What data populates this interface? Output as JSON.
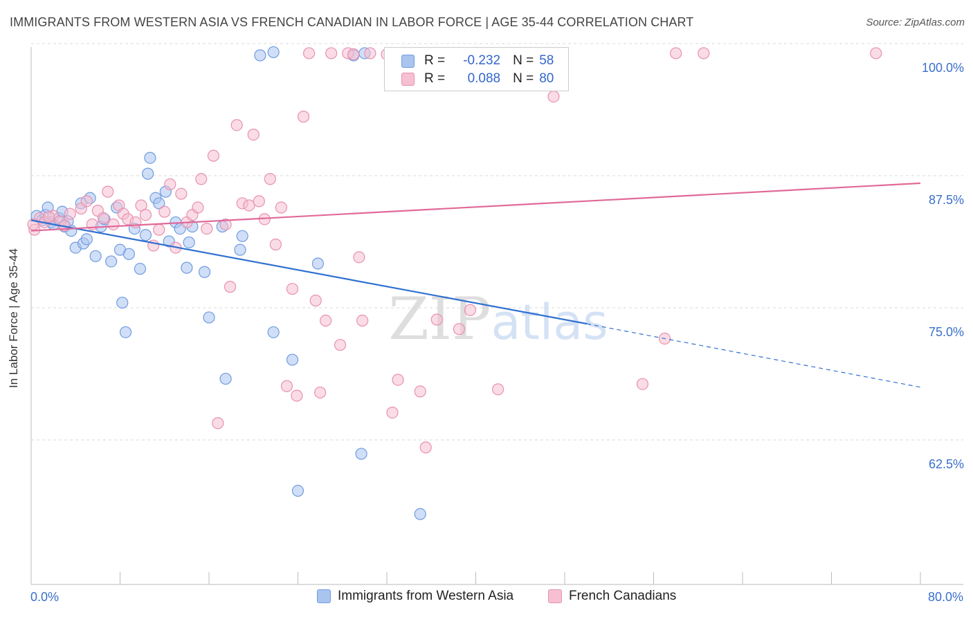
{
  "title": "IMMIGRANTS FROM WESTERN ASIA VS FRENCH CANADIAN IN LABOR FORCE | AGE 35-44 CORRELATION CHART",
  "source": "Source: ZipAtlas.com",
  "watermark": "ZIPatlas",
  "legend": {
    "r_label": "R =",
    "n_label": "N =",
    "rows": [
      {
        "r": "-0.232",
        "n": "58",
        "color": "#aac4f0",
        "border": "#6f9be0"
      },
      {
        "r": "0.088",
        "n": "80",
        "color": "#f6c0d2",
        "border": "#e890b0"
      }
    ]
  },
  "bottom_legend": [
    {
      "label": "Immigrants from Western Asia"
    },
    {
      "label": "French Canadians"
    }
  ],
  "chart_data": {
    "type": "scatter",
    "ylabel": "In Labor Force | Age 35-44",
    "xlim": [
      0,
      80
    ],
    "ylim": [
      50,
      101
    ],
    "x_tick_labels": [
      {
        "value": 0,
        "label": "0.0%"
      },
      {
        "value": 80,
        "label": "80.0%"
      }
    ],
    "y_tick_labels": [
      {
        "value": 100,
        "label": "100.0%"
      },
      {
        "value": 87.5,
        "label": "87.5%"
      },
      {
        "value": 75,
        "label": "75.0%"
      },
      {
        "value": 62.5,
        "label": "62.5%"
      }
    ],
    "grid": "horizontal-dashed",
    "series": [
      {
        "name": "Immigrants from Western Asia",
        "color": "#6f9be0",
        "fill": "#aac4f0",
        "line_color": "#2f6fd0",
        "trend": {
          "x": [
            0,
            50,
            80
          ],
          "y": [
            84.4,
            74.6,
            68.6
          ],
          "solid_until": 50
        },
        "points": [
          [
            0.5,
            84.8
          ],
          [
            1.0,
            84.4
          ],
          [
            1.3,
            84.9
          ],
          [
            1.5,
            85.6
          ],
          [
            1.8,
            84.2
          ],
          [
            2.0,
            84.0
          ],
          [
            2.5,
            84.6
          ],
          [
            2.8,
            85.2
          ],
          [
            3.0,
            83.8
          ],
          [
            3.3,
            84.3
          ],
          [
            3.6,
            83.4
          ],
          [
            4.0,
            81.8
          ],
          [
            4.5,
            86.0
          ],
          [
            4.7,
            82.2
          ],
          [
            5.0,
            82.6
          ],
          [
            5.3,
            86.5
          ],
          [
            5.8,
            81.0
          ],
          [
            6.3,
            83.8
          ],
          [
            6.6,
            84.5
          ],
          [
            7.2,
            80.5
          ],
          [
            7.7,
            85.6
          ],
          [
            8.0,
            81.6
          ],
          [
            8.2,
            76.6
          ],
          [
            8.5,
            73.8
          ],
          [
            8.8,
            81.2
          ],
          [
            9.3,
            83.6
          ],
          [
            9.8,
            79.8
          ],
          [
            10.3,
            83.0
          ],
          [
            10.5,
            88.8
          ],
          [
            10.7,
            90.3
          ],
          [
            11.2,
            86.5
          ],
          [
            11.5,
            86.0
          ],
          [
            12.1,
            87.1
          ],
          [
            12.4,
            82.4
          ],
          [
            13.0,
            84.2
          ],
          [
            13.4,
            83.6
          ],
          [
            14.0,
            79.9
          ],
          [
            14.2,
            82.3
          ],
          [
            14.5,
            83.8
          ],
          [
            15.6,
            79.5
          ],
          [
            16.0,
            75.2
          ],
          [
            17.2,
            83.8
          ],
          [
            17.5,
            69.4
          ],
          [
            18.8,
            81.6
          ],
          [
            19.0,
            82.9
          ],
          [
            20.6,
            100.0
          ],
          [
            21.8,
            100.3
          ],
          [
            21.8,
            73.8
          ],
          [
            23.5,
            71.2
          ],
          [
            24.0,
            58.8
          ],
          [
            25.8,
            80.3
          ],
          [
            29.0,
            100.0
          ],
          [
            29.7,
            62.3
          ],
          [
            30.0,
            100.2
          ],
          [
            35.0,
            56.6
          ],
          [
            37.0,
            100.1
          ],
          [
            42.5,
            100.1
          ],
          [
            44.0,
            100.2
          ]
        ]
      },
      {
        "name": "French Canadians",
        "color": "#e890b0",
        "fill": "#f6c0d2",
        "line_color": "#e06a98",
        "trend": {
          "x": [
            0,
            80
          ],
          "y": [
            83.4,
            87.9
          ]
        },
        "points": [
          [
            0.3,
            83.5
          ],
          [
            0.8,
            84.6
          ],
          [
            1.2,
            84.2
          ],
          [
            2.0,
            84.8
          ],
          [
            2.6,
            84.3
          ],
          [
            3.0,
            83.9
          ],
          [
            3.5,
            85.0
          ],
          [
            4.5,
            85.5
          ],
          [
            5.0,
            86.2
          ],
          [
            5.5,
            84.0
          ],
          [
            6.0,
            85.3
          ],
          [
            6.5,
            84.6
          ],
          [
            6.9,
            87.1
          ],
          [
            7.4,
            84.0
          ],
          [
            7.9,
            85.8
          ],
          [
            8.3,
            85.0
          ],
          [
            8.7,
            84.5
          ],
          [
            9.4,
            84.2
          ],
          [
            9.9,
            85.8
          ],
          [
            10.3,
            84.9
          ],
          [
            11.0,
            82.0
          ],
          [
            11.5,
            83.5
          ],
          [
            12.0,
            85.2
          ],
          [
            12.5,
            87.8
          ],
          [
            13.0,
            81.8
          ],
          [
            13.5,
            86.9
          ],
          [
            14.0,
            84.2
          ],
          [
            14.5,
            84.9
          ],
          [
            15.0,
            85.6
          ],
          [
            15.3,
            88.3
          ],
          [
            15.8,
            83.6
          ],
          [
            16.4,
            90.5
          ],
          [
            16.8,
            65.2
          ],
          [
            17.5,
            84.0
          ],
          [
            17.9,
            78.1
          ],
          [
            18.5,
            93.4
          ],
          [
            19.0,
            86.0
          ],
          [
            19.6,
            85.8
          ],
          [
            20.0,
            92.5
          ],
          [
            20.5,
            86.2
          ],
          [
            21.0,
            84.5
          ],
          [
            21.5,
            88.3
          ],
          [
            22.0,
            82.1
          ],
          [
            22.5,
            85.6
          ],
          [
            23.0,
            68.7
          ],
          [
            23.5,
            77.9
          ],
          [
            23.9,
            67.8
          ],
          [
            24.5,
            94.2
          ],
          [
            25.0,
            100.2
          ],
          [
            25.6,
            76.8
          ],
          [
            26.0,
            68.1
          ],
          [
            26.5,
            74.9
          ],
          [
            27.0,
            100.2
          ],
          [
            27.8,
            72.6
          ],
          [
            28.5,
            100.2
          ],
          [
            29.0,
            100.1
          ],
          [
            29.5,
            80.9
          ],
          [
            29.8,
            74.9
          ],
          [
            30.5,
            100.2
          ],
          [
            32.0,
            100.1
          ],
          [
            32.5,
            66.2
          ],
          [
            33.0,
            69.3
          ],
          [
            34.0,
            100.2
          ],
          [
            35.0,
            68.2
          ],
          [
            35.5,
            62.9
          ],
          [
            36.0,
            100.2
          ],
          [
            36.5,
            75.0
          ],
          [
            37.5,
            100.1
          ],
          [
            38.5,
            74.1
          ],
          [
            39.5,
            75.9
          ],
          [
            40.0,
            100.2
          ],
          [
            42.0,
            68.4
          ],
          [
            47.0,
            96.1
          ],
          [
            55.0,
            68.9
          ],
          [
            57.0,
            73.2
          ],
          [
            58.0,
            100.2
          ],
          [
            60.5,
            100.2
          ],
          [
            76.0,
            100.2
          ],
          [
            0.2,
            84.0
          ],
          [
            1.6,
            84.7
          ]
        ]
      }
    ]
  }
}
